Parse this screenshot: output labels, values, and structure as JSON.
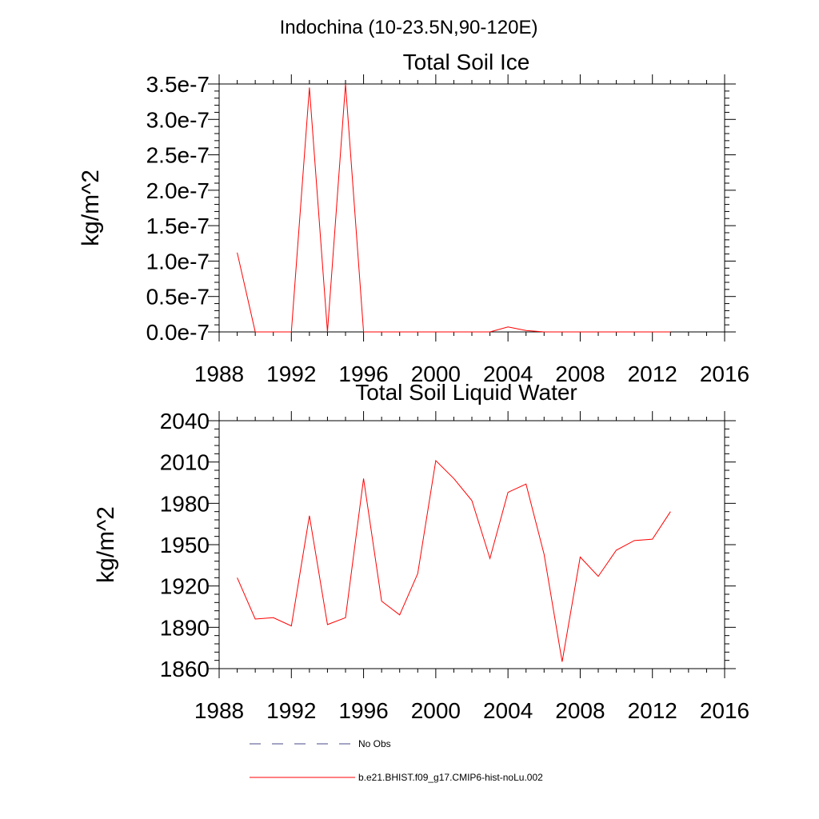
{
  "page": {
    "title": "Indochina (10-23.5N,90-120E)"
  },
  "colors": {
    "model_line": "#ff0000",
    "obs_line": "#4a4a8a",
    "axis": "#000000"
  },
  "chart_data": [
    {
      "type": "line",
      "title": "Total Soil Ice",
      "xlabel": "",
      "ylabel": "kg/m^2",
      "xlim": [
        1988,
        2016
      ],
      "ylim": [
        0,
        3.5e-07
      ],
      "xticks": [
        1988,
        1992,
        1996,
        2000,
        2004,
        2008,
        2012,
        2016
      ],
      "xtick_labels": [
        "1988",
        "1992",
        "1996",
        "2000",
        "2004",
        "2008",
        "2012",
        "2016"
      ],
      "yticks": [
        0,
        5e-08,
        1e-07,
        1.5e-07,
        2e-07,
        2.5e-07,
        3e-07,
        3.5e-07
      ],
      "ytick_labels": [
        "0.0e-7",
        "0.5e-7",
        "1.0e-7",
        "1.5e-7",
        "2.0e-7",
        "2.5e-7",
        "3.0e-7",
        "3.5e-7"
      ],
      "grid": false,
      "series": [
        {
          "name": "b.e21.BHIST.f09_g17.CMIP6-hist-noLu.002",
          "x": [
            1989,
            1990,
            1991,
            1992,
            1993,
            1994,
            1995,
            1996,
            1997,
            1998,
            1999,
            2000,
            2001,
            2002,
            2003,
            2004,
            2005,
            2006,
            2007,
            2008,
            2009,
            2010,
            2011,
            2012,
            2013
          ],
          "y": [
            1.12e-07,
            0,
            0,
            0,
            3.45e-07,
            0,
            3.5e-07,
            0,
            0,
            0,
            0,
            0,
            0,
            0,
            0,
            7e-09,
            2e-09,
            0,
            0,
            0,
            0,
            0,
            0,
            0,
            0
          ]
        }
      ]
    },
    {
      "type": "line",
      "title": "Total Soil Liquid Water",
      "xlabel": "",
      "ylabel": "kg/m^2",
      "xlim": [
        1988,
        2016
      ],
      "ylim": [
        1860,
        2040
      ],
      "xticks": [
        1988,
        1992,
        1996,
        2000,
        2004,
        2008,
        2012,
        2016
      ],
      "xtick_labels": [
        "1988",
        "1992",
        "1996",
        "2000",
        "2004",
        "2008",
        "2012",
        "2016"
      ],
      "yticks": [
        1860,
        1890,
        1920,
        1950,
        1980,
        2010,
        2040
      ],
      "ytick_labels": [
        "1860",
        "1890",
        "1920",
        "1950",
        "1980",
        "2010",
        "2040"
      ],
      "grid": false,
      "series": [
        {
          "name": "b.e21.BHIST.f09_g17.CMIP6-hist-noLu.002",
          "x": [
            1989,
            1990,
            1991,
            1992,
            1993,
            1994,
            1995,
            1996,
            1997,
            1998,
            1999,
            2000,
            2001,
            2002,
            2003,
            2004,
            2005,
            2006,
            2007,
            2008,
            2009,
            2010,
            2011,
            2012,
            2013
          ],
          "y": [
            1926,
            1896,
            1897,
            1891,
            1971,
            1892,
            1897,
            1998,
            1909,
            1899,
            1929,
            2011,
            1998,
            1982,
            1940,
            1988,
            1994,
            1943,
            1865,
            1941,
            1927,
            1946,
            1953,
            1954,
            1974
          ]
        }
      ]
    }
  ],
  "legend": {
    "placement": "bottom",
    "items": [
      {
        "label": "No Obs",
        "style": "dashed",
        "color": "#4a4a8a"
      },
      {
        "label": "b.e21.BHIST.f09_g17.CMIP6-hist-noLu.002",
        "style": "solid",
        "color": "#ff0000"
      }
    ]
  }
}
